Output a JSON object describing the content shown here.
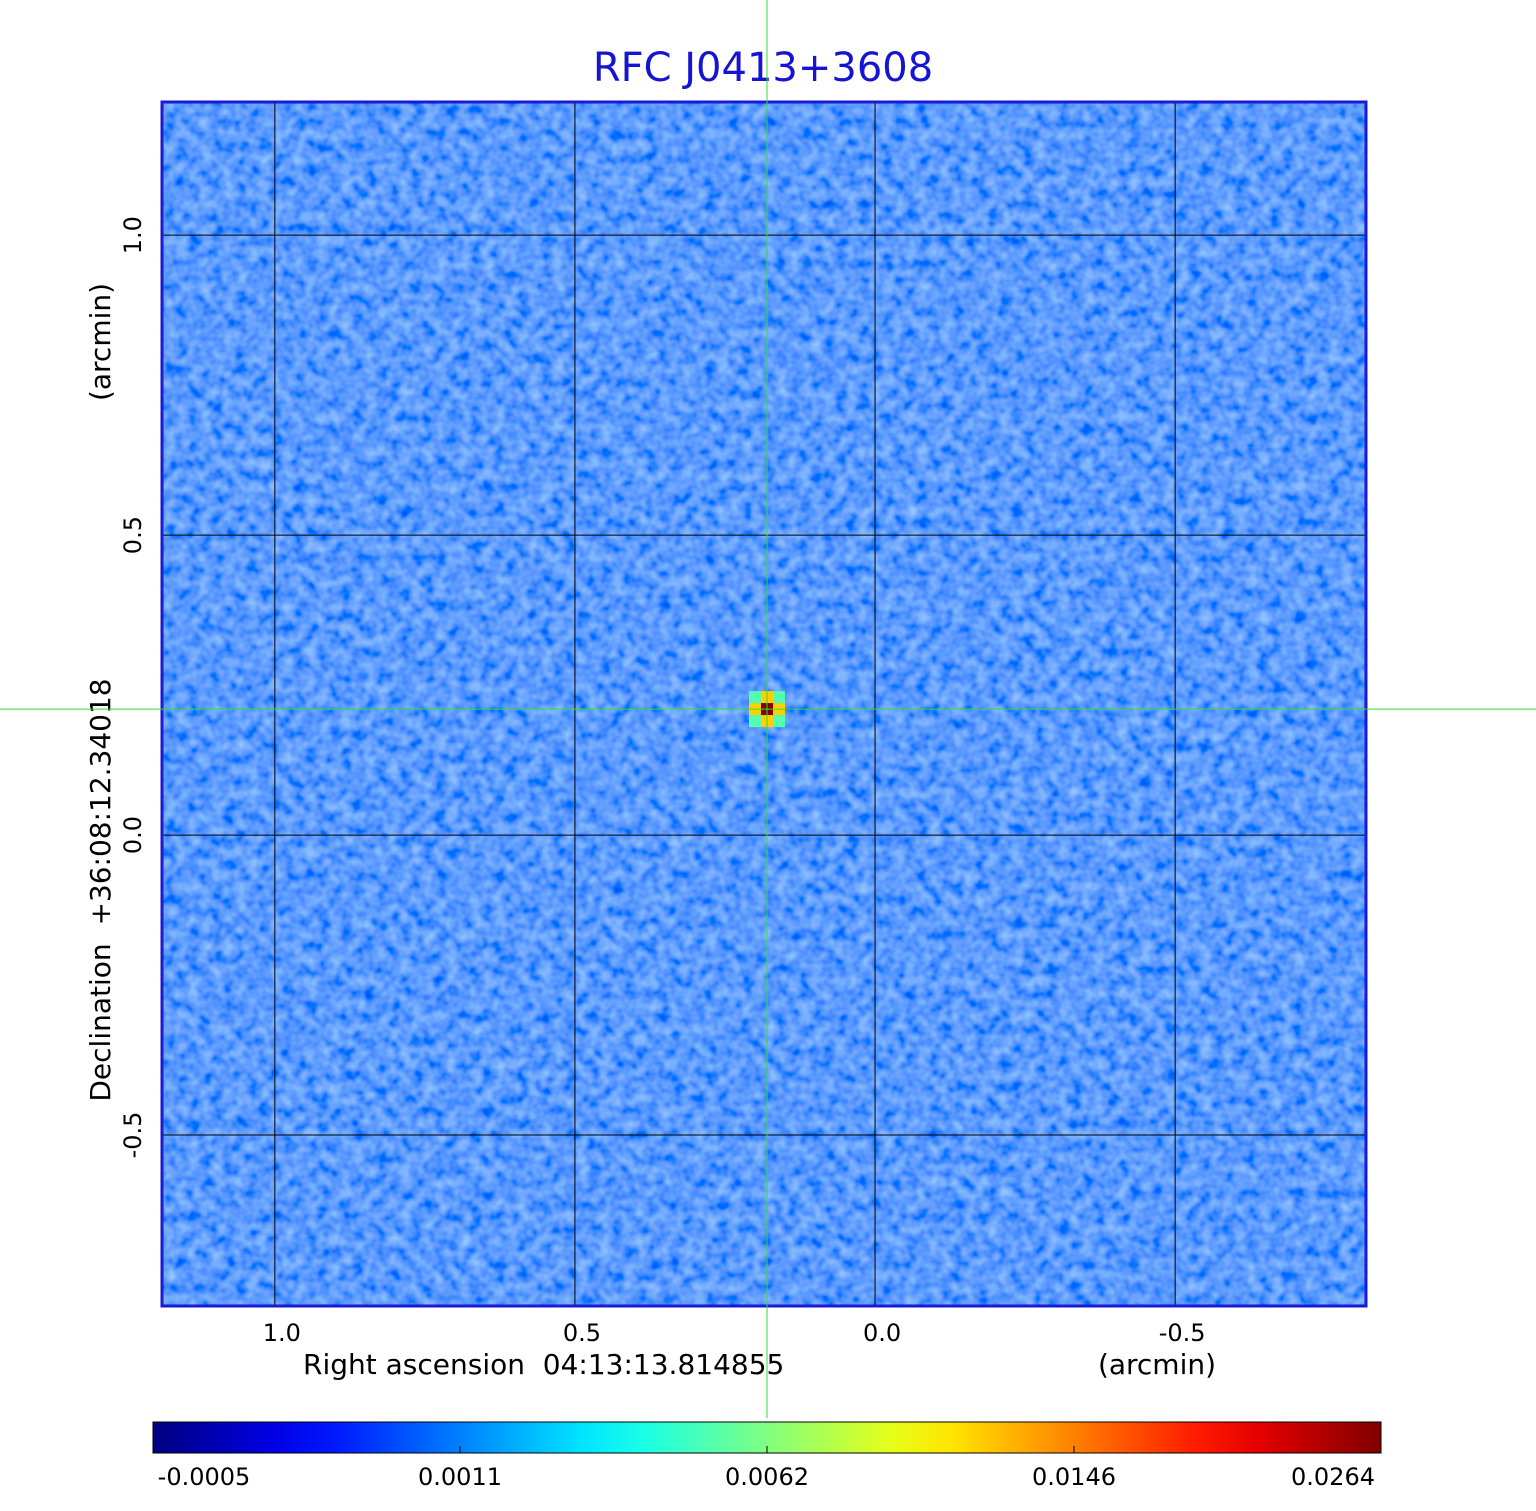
{
  "chart_data": {
    "type": "image",
    "title": "RFC J0413+3608",
    "x_label": "Right ascension  04:13:13.814855",
    "x_unit": "(arcmin)",
    "y_label": "Declination  +36:08:12.34018",
    "y_unit": "(arcmin)",
    "xlim": [
      1.188,
      -0.818
    ],
    "ylim": [
      -0.785,
      1.222
    ],
    "xticks": [
      {
        "value": 1,
        "label": "1.0"
      },
      0.5,
      {
        "value": 0,
        "label": "0.0"
      },
      -0.5
    ],
    "yticks": [
      {
        "value": 1,
        "label": "1.0"
      },
      0.5,
      {
        "value": 0,
        "label": "0.0"
      },
      -0.5
    ],
    "grid": true,
    "colormap": "jet",
    "colorbar_ticks": [
      -0.0005,
      0.0011,
      0.0062,
      0.0146,
      0.0264
    ],
    "source": {
      "x": 0.18,
      "y": 0.21,
      "peak": 0.0264
    },
    "crosshair_color": "#33dd33"
  }
}
